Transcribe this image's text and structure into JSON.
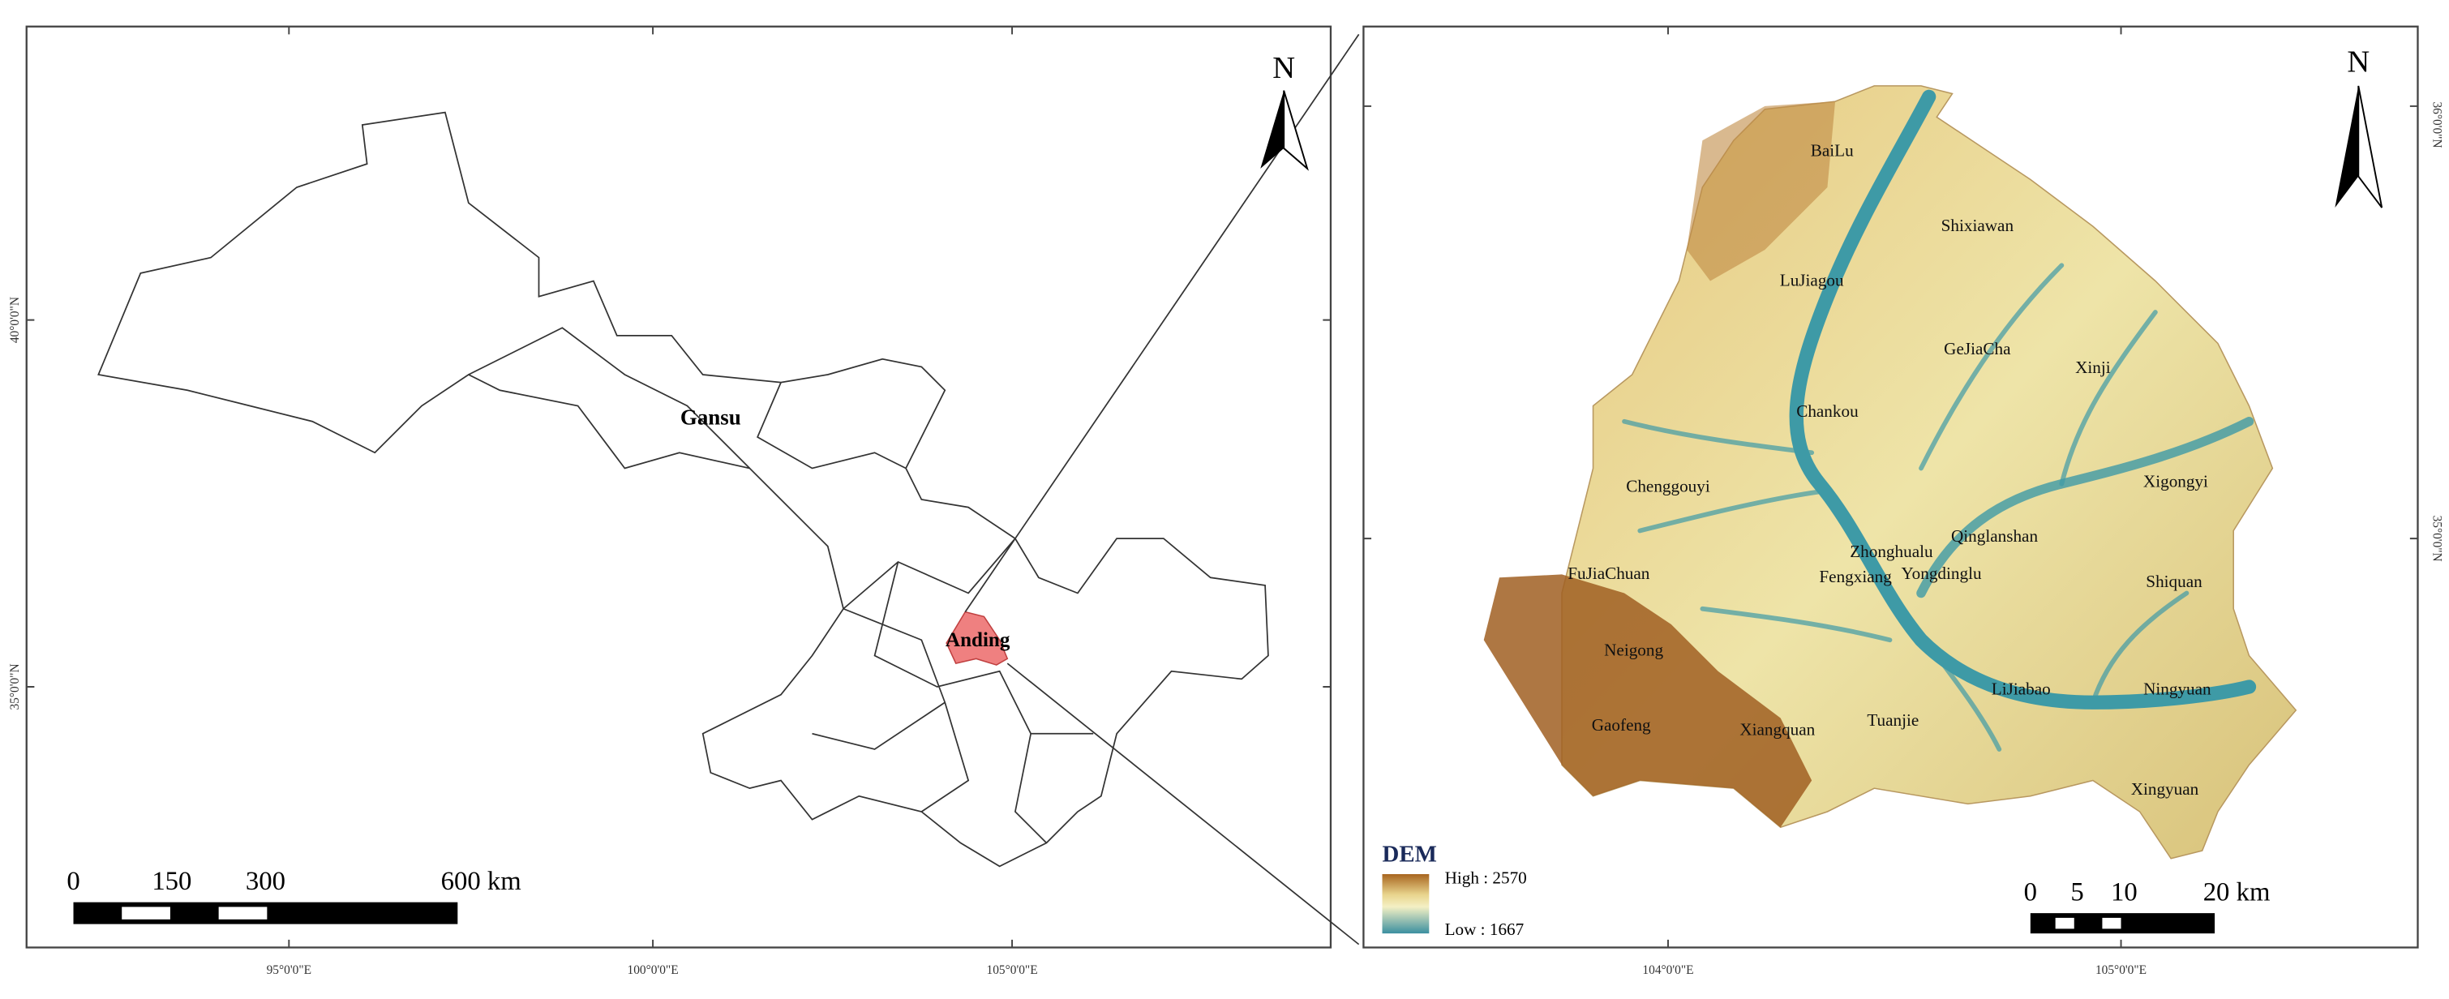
{
  "left_map": {
    "region_labels": {
      "province": "Gansu",
      "study_area": "Anding"
    },
    "north": "N",
    "scale_labels": [
      "0",
      "150",
      "300",
      "600 km"
    ],
    "latitude_labels": [
      "40°0'0\"N",
      "35°0'0\"N"
    ],
    "longitude_labels": [
      "95°0'0\"E",
      "100°0'0\"E",
      "105°0'0\"E"
    ]
  },
  "right_map": {
    "north": "N",
    "place_names": [
      "BaiLu",
      "Shixiawan",
      "LuJiagou",
      "GeJiaCha",
      "Xinji",
      "Chankou",
      "Xigongyi",
      "Chenggouyi",
      "Qinglanshan",
      "Zhonghualu",
      "Fengxiang",
      "Yongdinglu",
      "FuJiaChuan",
      "Shiquan",
      "Neigong",
      "LiJiabao",
      "Ningyuan",
      "Gaofeng",
      "Xiangquan",
      "Tuanjie",
      "Xingyuan"
    ],
    "legend": {
      "title": "DEM",
      "high": "High : 2570",
      "low": "Low : 1667"
    },
    "scale_labels": [
      "0",
      "5",
      "10",
      "20 km"
    ],
    "latitude_labels": [
      "36°0'0\"N",
      "35°0'0\"N"
    ],
    "longitude_labels": [
      "104°0'0\"E",
      "105°0'0\"E"
    ]
  }
}
